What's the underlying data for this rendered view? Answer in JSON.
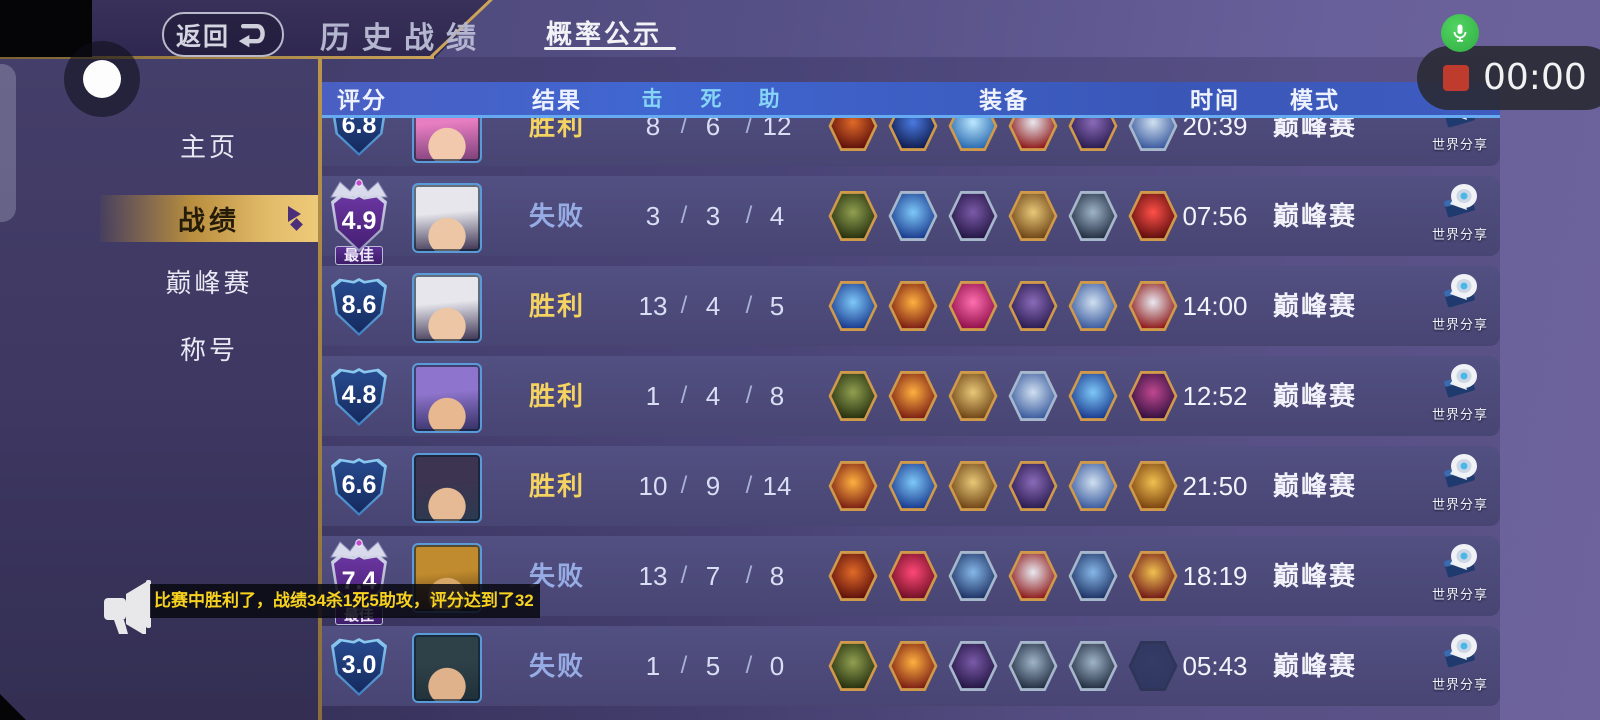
{
  "top_bar": {
    "back_label": "返回",
    "title": "历史战绩",
    "tab_probability": "概率公示"
  },
  "recorder": {
    "timer": "00:00"
  },
  "sidebar": {
    "items": [
      {
        "label": "主页",
        "active": false
      },
      {
        "label": "战绩",
        "active": true
      },
      {
        "label": "巅峰赛",
        "active": false
      },
      {
        "label": "称号",
        "active": false
      }
    ]
  },
  "table": {
    "headers": {
      "score": "评分",
      "result": "结果",
      "k": "击",
      "d": "死",
      "a": "助",
      "equip": "装备",
      "time": "时间",
      "mode": "模式"
    },
    "kda_separator": "/",
    "best_label": "最佳",
    "share_label": "世界分享",
    "item_styles": {
      "red-sword": {
        "border": "#d09a4a",
        "inner": "#e06a28",
        "outer": "#5e100c"
      },
      "dark-blue-crystal": {
        "border": "#d09a4a",
        "inner": "#4a7ae0",
        "outer": "#101c4e"
      },
      "ice-crystal": {
        "border": "#d09a4a",
        "inner": "#bce8ff",
        "outer": "#2a6ab0"
      },
      "red-wings": {
        "border": "#d09a4a",
        "inner": "#e8e8f0",
        "outer": "#8e1a1a"
      },
      "purple-armor": {
        "border": "#d09a4a",
        "inner": "#8a6ab8",
        "outer": "#2a1c50"
      },
      "purple-armor-silver": {
        "border": "#a8b8cc",
        "inner": "#7a5aa8",
        "outer": "#241644"
      },
      "silver-armor": {
        "border": "#a8b8cc",
        "inner": "#d0e0f0",
        "outer": "#3a5a9e"
      },
      "silver-armor-gold": {
        "border": "#d09a4a",
        "inner": "#d0e0f0",
        "outer": "#3a5a9e"
      },
      "green-boots": {
        "border": "#d09a4a",
        "inner": "#90a050",
        "outer": "#26300f"
      },
      "blue-crystal": {
        "border": "#d09a4a",
        "inner": "#7ec8f8",
        "outer": "#1a3a8e"
      },
      "blue-crystal-silver": {
        "border": "#a8b8cc",
        "inner": "#7ec8f8",
        "outer": "#1a3a8e"
      },
      "magenta-crystal": {
        "border": "#d09a4a",
        "inner": "#ff6fb0",
        "outer": "#90104a"
      },
      "gold-ornate": {
        "border": "#d09a4a",
        "inner": "#e8c878",
        "outer": "#6e4416"
      },
      "gray-shield": {
        "border": "#a8b8cc",
        "inner": "#9fb4c8",
        "outer": "#232e42"
      },
      "crimson-blades": {
        "border": "#d09a4a",
        "inner": "#ff5048",
        "outer": "#5e0e0e"
      },
      "red-orb": {
        "border": "#d09a4a",
        "inner": "#ffb040",
        "outer": "#7a1e14"
      },
      "purple-magenta": {
        "border": "#d09a4a",
        "inner": "#c04890",
        "outer": "#321040"
      },
      "crimson-gem": {
        "border": "#d09a4a",
        "inner": "#ff4878",
        "outer": "#701024"
      },
      "blue-box": {
        "border": "#a8b8cc",
        "inner": "#86b8e8",
        "outer": "#1e3264"
      },
      "gold-wings": {
        "border": "#d09a4a",
        "inner": "#f0c050",
        "outer": "#701818"
      },
      "gold-gauntlet": {
        "border": "#d09a4a",
        "inner": "#f0c050",
        "outer": "#7a4210"
      },
      "empty": {
        "border": "#2f3558",
        "inner": "#353c66",
        "outer": "#303760"
      }
    },
    "rows": [
      {
        "score": "6.8",
        "best": false,
        "result": "胜利",
        "win": true,
        "k": "8",
        "d": "6",
        "a": "12",
        "time": "20:39",
        "mode": "巅峰赛",
        "avatar": {
          "hair": "#e87ec2",
          "skin": "#f2c9ac",
          "bg": "#7a3f78"
        },
        "items": [
          "red-sword",
          "dark-blue-crystal",
          "ice-crystal",
          "red-wings",
          "purple-armor",
          "silver-armor"
        ]
      },
      {
        "score": "4.9",
        "best": true,
        "result": "失败",
        "win": false,
        "k": "3",
        "d": "3",
        "a": "4",
        "time": "07:56",
        "mode": "巅峰赛",
        "avatar": {
          "hair": "#e6e6ec",
          "skin": "#edc6a6",
          "bg": "#3a3050"
        },
        "items": [
          "green-boots",
          "blue-crystal-silver",
          "purple-armor-silver",
          "gold-ornate",
          "gray-shield",
          "crimson-blades"
        ]
      },
      {
        "score": "8.6",
        "best": false,
        "result": "胜利",
        "win": true,
        "k": "13",
        "d": "4",
        "a": "5",
        "time": "14:00",
        "mode": "巅峰赛",
        "avatar": {
          "hair": "#e6e6ec",
          "skin": "#edc6a6",
          "bg": "#3a3050"
        },
        "items": [
          "blue-crystal",
          "red-orb",
          "magenta-crystal",
          "purple-armor",
          "silver-armor-gold",
          "red-wings"
        ]
      },
      {
        "score": "4.8",
        "best": false,
        "result": "胜利",
        "win": true,
        "k": "1",
        "d": "4",
        "a": "8",
        "time": "12:52",
        "mode": "巅峰赛",
        "avatar": {
          "hair": "#8e74cc",
          "skin": "#e8b890",
          "bg": "#343064"
        },
        "items": [
          "green-boots",
          "red-orb",
          "gold-ornate",
          "silver-armor",
          "blue-crystal",
          "purple-magenta"
        ]
      },
      {
        "score": "6.6",
        "best": false,
        "result": "胜利",
        "win": true,
        "k": "10",
        "d": "9",
        "a": "14",
        "time": "21:50",
        "mode": "巅峰赛",
        "avatar": {
          "hair": "#3c3450",
          "skin": "#e6ba94",
          "bg": "#2c3a50"
        },
        "items": [
          "red-orb",
          "blue-crystal",
          "gold-ornate",
          "purple-armor",
          "silver-armor-gold",
          "gold-gauntlet"
        ]
      },
      {
        "score": "7.4",
        "best": true,
        "result": "失败",
        "win": false,
        "k": "13",
        "d": "7",
        "a": "8",
        "time": "18:19",
        "mode": "巅峰赛",
        "avatar": {
          "hair": "#c08a2e",
          "skin": "#d8a868",
          "bg": "#4a330f"
        },
        "items": [
          "red-sword",
          "crimson-gem",
          "blue-box",
          "red-wings",
          "blue-box",
          "gold-wings"
        ]
      },
      {
        "score": "3.0",
        "best": false,
        "result": "失败",
        "win": false,
        "k": "1",
        "d": "5",
        "a": "0",
        "time": "05:43",
        "mode": "巅峰赛",
        "avatar": {
          "hair": "#2e4048",
          "skin": "#dfb28c",
          "bg": "#203038"
        },
        "items": [
          "green-boots",
          "red-orb",
          "purple-armor-silver",
          "gray-shield",
          "gray-shield",
          "empty"
        ]
      }
    ]
  },
  "marquee": {
    "text": "比赛中胜利了，战绩34杀1死5助攻，评分达到了32"
  },
  "colors": {
    "win": "#f4d361",
    "loss": "#97abe4",
    "gold_accent": "#caa45a",
    "header_blue": "#3f62cd",
    "marquee_yellow": "#f7d21e",
    "record_red": "#bf3b2e",
    "mic_green": "#3fbf50"
  }
}
